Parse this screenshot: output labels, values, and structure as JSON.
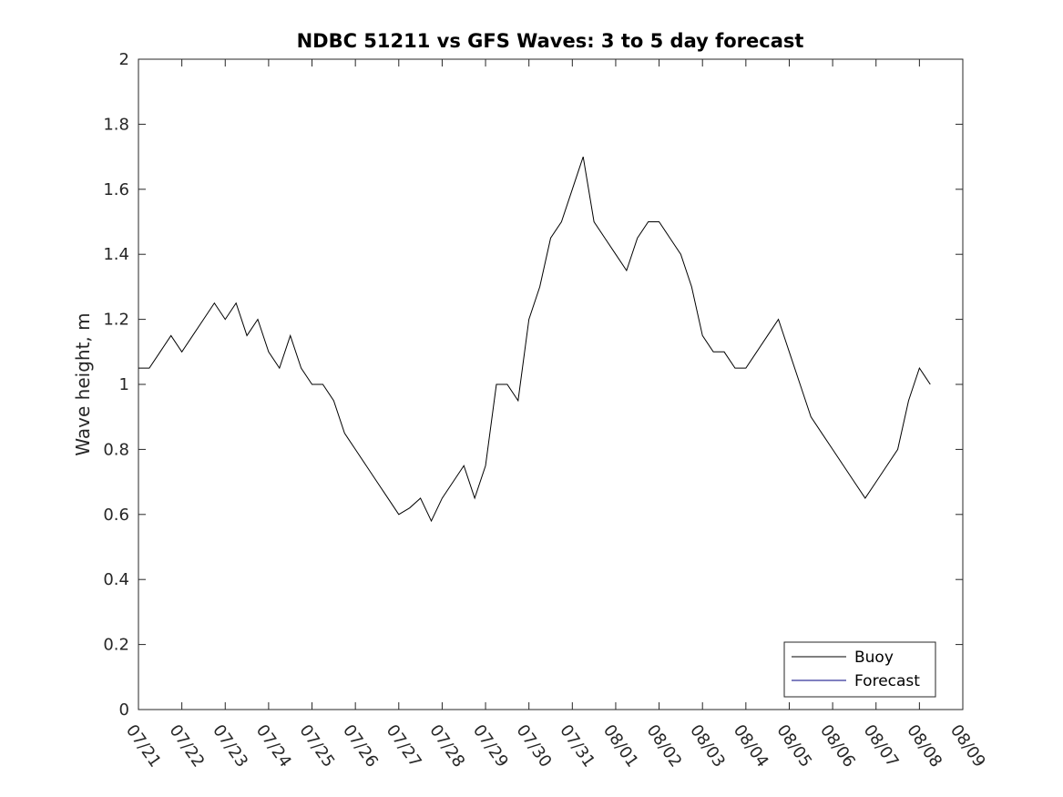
{
  "chart_data": {
    "type": "line",
    "title": "NDBC 51211 vs GFS Waves: 3 to 5 day forecast",
    "xlabel": "",
    "ylabel": "Wave height, m",
    "x_ticks": [
      "07/21",
      "07/22",
      "07/23",
      "07/24",
      "07/25",
      "07/26",
      "07/27",
      "07/28",
      "07/29",
      "07/30",
      "07/31",
      "08/01",
      "08/02",
      "08/03",
      "08/04",
      "08/05",
      "08/06",
      "08/07",
      "08/08",
      "08/09"
    ],
    "y_ticks": [
      "0",
      "0.2",
      "0.4",
      "0.6",
      "0.8",
      "1",
      "1.2",
      "1.4",
      "1.6",
      "1.8",
      "2"
    ],
    "ylim": [
      0,
      2
    ],
    "grid": false,
    "legend_position": "bottom-right",
    "series": [
      {
        "name": "Buoy",
        "color": "#000000",
        "x_start_date": "07/21",
        "x_days": [
          0.0,
          0.25,
          0.5,
          0.75,
          1.0,
          1.25,
          1.5,
          1.75,
          2.0,
          2.25,
          2.5,
          2.75,
          3.0,
          3.25,
          3.5,
          3.75,
          4.0,
          4.25,
          4.5,
          4.75,
          5.0,
          5.25,
          5.5,
          5.75,
          6.0,
          6.25,
          6.5,
          6.75,
          7.0,
          7.25,
          7.5,
          7.75,
          8.0,
          8.25,
          8.5,
          8.75,
          9.0,
          9.25,
          9.5,
          9.75,
          10.0,
          10.25,
          10.5,
          10.75,
          11.0,
          11.25,
          11.5,
          11.75,
          12.0,
          12.25,
          12.5,
          12.75,
          13.0,
          13.25,
          13.5,
          13.75,
          14.0,
          14.25,
          14.5,
          14.75,
          15.0,
          15.25,
          15.5,
          15.75,
          16.0,
          16.25,
          16.5,
          16.75,
          17.0,
          17.25,
          17.5,
          17.75,
          18.0,
          18.25
        ],
        "values": [
          1.05,
          1.05,
          1.1,
          1.15,
          1.1,
          1.15,
          1.2,
          1.25,
          1.2,
          1.25,
          1.15,
          1.2,
          1.1,
          1.05,
          1.15,
          1.05,
          1.0,
          1.0,
          0.95,
          0.85,
          0.8,
          0.75,
          0.7,
          0.65,
          0.6,
          0.62,
          0.65,
          0.58,
          0.65,
          0.7,
          0.75,
          0.65,
          0.75,
          1.0,
          1.0,
          0.95,
          1.2,
          1.3,
          1.45,
          1.5,
          1.6,
          1.7,
          1.5,
          1.45,
          1.4,
          1.35,
          1.45,
          1.5,
          1.5,
          1.45,
          1.4,
          1.3,
          1.15,
          1.1,
          1.1,
          1.05,
          1.05,
          1.1,
          1.15,
          1.2,
          1.1,
          1.0,
          0.9,
          0.85,
          0.8,
          0.75,
          0.7,
          0.65,
          0.7,
          0.75,
          0.8,
          0.95,
          1.05,
          1.0
        ]
      },
      {
        "name": "Forecast",
        "color": "#000080",
        "values": []
      }
    ]
  }
}
